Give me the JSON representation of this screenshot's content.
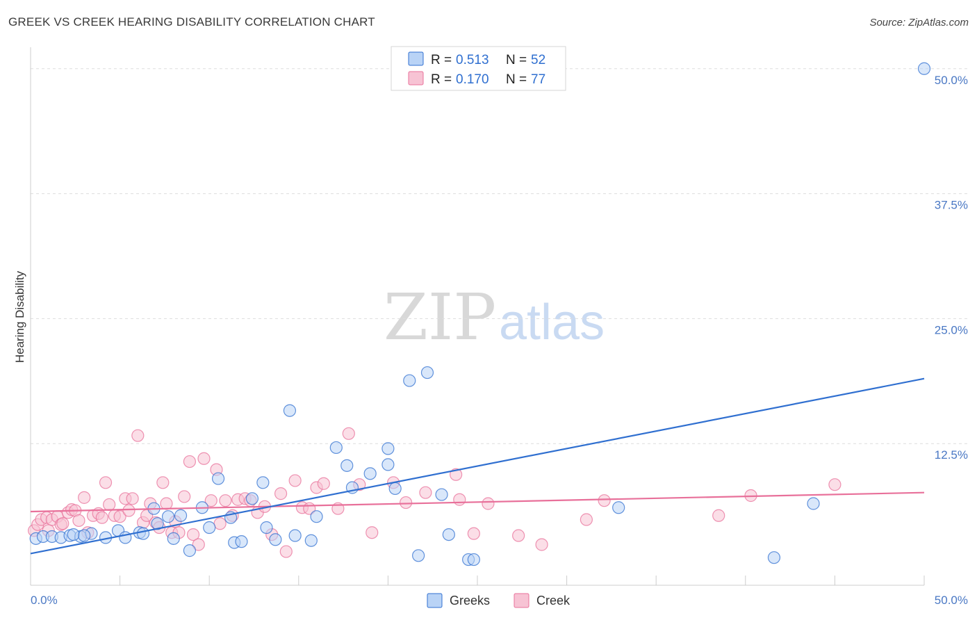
{
  "title": "GREEK VS CREEK HEARING DISABILITY CORRELATION CHART",
  "source": "Source: ZipAtlas.com",
  "watermark": {
    "zip": "ZIP",
    "atlas": "atlas"
  },
  "colors": {
    "greeks": "#2f6fd0",
    "greeks_fill": "#b9d3f6",
    "creek": "#e8709a",
    "creek_fill": "#f7c3d4",
    "tick": "#4a78c4"
  },
  "legend": {
    "greeks": {
      "r_label": "R = ",
      "r_value": "0.513",
      "n_label": "N = ",
      "n_value": "52"
    },
    "creek": {
      "r_label": "R = ",
      "r_value": "0.170",
      "n_label": "N = ",
      "n_value": "77"
    }
  },
  "chart_data": {
    "type": "scatter",
    "title": "GREEK VS CREEK HEARING DISABILITY CORRELATION CHART",
    "xlabel": "",
    "ylabel": "Hearing Disability",
    "xlim": [
      0,
      50
    ],
    "ylim": [
      0,
      52
    ],
    "x_tick_labels": [
      "0.0%",
      "50.0%"
    ],
    "y_ticks": [
      12.5,
      25.0,
      37.5,
      50.0
    ],
    "y_tick_labels": [
      "12.5%",
      "25.0%",
      "37.5%",
      "50.0%"
    ],
    "grid": true,
    "legend_position": "top-center",
    "series": [
      {
        "name": "Greeks",
        "r": 0.513,
        "n": 52,
        "trend": {
          "x": [
            0,
            50
          ],
          "y": [
            1.5,
            19.0
          ]
        },
        "points": [
          [
            0.3,
            3.0
          ],
          [
            0.7,
            3.2
          ],
          [
            1.2,
            3.2
          ],
          [
            1.7,
            3.1
          ],
          [
            2.2,
            3.3
          ],
          [
            2.8,
            3.2
          ],
          [
            3.4,
            3.5
          ],
          [
            4.2,
            3.1
          ],
          [
            4.9,
            3.8
          ],
          [
            5.3,
            3.1
          ],
          [
            6.1,
            3.6
          ],
          [
            6.9,
            6.0
          ],
          [
            7.1,
            4.5
          ],
          [
            7.7,
            5.2
          ],
          [
            8.0,
            3.0
          ],
          [
            8.4,
            5.3
          ],
          [
            8.9,
            1.8
          ],
          [
            9.6,
            6.1
          ],
          [
            10.0,
            4.1
          ],
          [
            10.5,
            9.0
          ],
          [
            11.2,
            5.1
          ],
          [
            11.4,
            2.6
          ],
          [
            11.8,
            2.7
          ],
          [
            12.4,
            7.0
          ],
          [
            13.0,
            8.6
          ],
          [
            13.2,
            4.1
          ],
          [
            13.7,
            2.9
          ],
          [
            14.5,
            15.8
          ],
          [
            14.8,
            3.3
          ],
          [
            15.7,
            2.8
          ],
          [
            16.0,
            5.2
          ],
          [
            17.1,
            12.1
          ],
          [
            17.7,
            10.3
          ],
          [
            18.0,
            8.1
          ],
          [
            19.0,
            9.5
          ],
          [
            20.0,
            12.0
          ],
          [
            20.0,
            10.4
          ],
          [
            20.4,
            8.0
          ],
          [
            21.2,
            18.8
          ],
          [
            21.7,
            1.3
          ],
          [
            22.2,
            19.6
          ],
          [
            23.0,
            7.4
          ],
          [
            23.4,
            3.4
          ],
          [
            24.5,
            0.9
          ],
          [
            24.8,
            0.9
          ],
          [
            32.9,
            6.1
          ],
          [
            41.6,
            1.1
          ],
          [
            43.8,
            6.5
          ],
          [
            50.0,
            50.0
          ],
          [
            2.4,
            3.4
          ],
          [
            3.0,
            3.3
          ],
          [
            6.3,
            3.5
          ]
        ]
      },
      {
        "name": "Creek",
        "r": 0.17,
        "n": 77,
        "trend": {
          "x": [
            0,
            50
          ],
          "y": [
            5.7,
            7.6
          ]
        },
        "points": [
          [
            0.2,
            3.8
          ],
          [
            0.4,
            4.4
          ],
          [
            0.6,
            4.9
          ],
          [
            0.9,
            5.1
          ],
          [
            1.2,
            4.9
          ],
          [
            1.5,
            5.2
          ],
          [
            1.7,
            4.4
          ],
          [
            1.8,
            4.5
          ],
          [
            2.1,
            5.6
          ],
          [
            2.3,
            5.9
          ],
          [
            2.5,
            5.8
          ],
          [
            2.7,
            4.8
          ],
          [
            3.0,
            7.1
          ],
          [
            3.2,
            3.6
          ],
          [
            3.5,
            5.3
          ],
          [
            3.8,
            5.5
          ],
          [
            4.0,
            5.1
          ],
          [
            4.2,
            8.6
          ],
          [
            4.4,
            6.4
          ],
          [
            4.7,
            5.3
          ],
          [
            5.0,
            5.2
          ],
          [
            5.3,
            7.0
          ],
          [
            5.5,
            5.8
          ],
          [
            5.7,
            7.0
          ],
          [
            6.0,
            13.3
          ],
          [
            6.3,
            4.6
          ],
          [
            6.5,
            5.3
          ],
          [
            6.7,
            6.5
          ],
          [
            7.0,
            4.6
          ],
          [
            7.2,
            4.1
          ],
          [
            7.4,
            8.6
          ],
          [
            7.6,
            6.5
          ],
          [
            7.9,
            3.6
          ],
          [
            8.1,
            4.7
          ],
          [
            8.3,
            3.6
          ],
          [
            8.6,
            7.2
          ],
          [
            8.9,
            10.7
          ],
          [
            9.1,
            3.4
          ],
          [
            9.4,
            2.4
          ],
          [
            9.7,
            11.0
          ],
          [
            10.1,
            6.8
          ],
          [
            10.4,
            9.9
          ],
          [
            10.6,
            4.5
          ],
          [
            10.9,
            6.8
          ],
          [
            11.3,
            5.3
          ],
          [
            11.6,
            6.9
          ],
          [
            12.0,
            7.0
          ],
          [
            12.3,
            6.8
          ],
          [
            12.7,
            5.6
          ],
          [
            13.1,
            6.2
          ],
          [
            13.5,
            3.4
          ],
          [
            14.0,
            7.5
          ],
          [
            14.3,
            1.7
          ],
          [
            14.8,
            8.8
          ],
          [
            15.2,
            6.1
          ],
          [
            15.6,
            6.0
          ],
          [
            16.0,
            8.1
          ],
          [
            16.4,
            8.5
          ],
          [
            17.2,
            6.0
          ],
          [
            17.8,
            13.5
          ],
          [
            18.4,
            8.4
          ],
          [
            19.1,
            3.6
          ],
          [
            20.3,
            8.6
          ],
          [
            21.0,
            6.6
          ],
          [
            22.1,
            7.6
          ],
          [
            23.8,
            9.4
          ],
          [
            24.0,
            6.9
          ],
          [
            24.8,
            3.5
          ],
          [
            25.6,
            6.5
          ],
          [
            27.3,
            3.3
          ],
          [
            28.6,
            2.4
          ],
          [
            31.1,
            4.9
          ],
          [
            32.1,
            6.8
          ],
          [
            38.5,
            5.3
          ],
          [
            40.3,
            7.3
          ],
          [
            45.0,
            8.4
          ],
          [
            1.0,
            3.8
          ]
        ]
      }
    ]
  },
  "bottom_legend": {
    "greeks": "Greeks",
    "creek": "Creek"
  }
}
